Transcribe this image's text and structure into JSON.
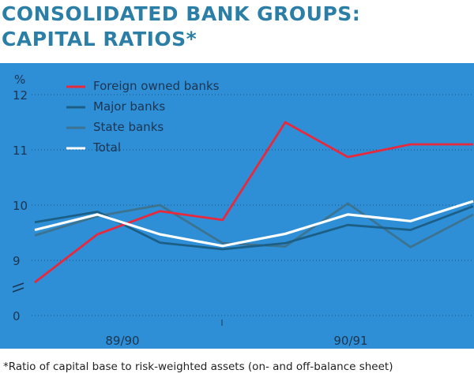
{
  "title_line1": "CONSOLIDATED BANK GROUPS:",
  "title_line2": "CAPITAL RATIOS*",
  "footnote": "*Ratio of capital base to risk-weighted assets (on- and off-balance sheet)",
  "chart_data": {
    "type": "line",
    "ylabel": "%",
    "y_ticks": [
      "12",
      "11",
      "10",
      "9",
      "0"
    ],
    "y_axis_break": "between 0 and 9",
    "ylim": [
      8.5,
      12
    ],
    "x_group_labels": [
      "89/90",
      "90/91"
    ],
    "x_points": 8,
    "grid": "horizontal dotted",
    "legend": "top-left",
    "series": [
      {
        "name": "Foreign owned banks",
        "color": "#e8283c",
        "values": [
          8.6,
          9.47,
          9.89,
          9.73,
          11.5,
          10.87,
          11.1,
          11.1
        ]
      },
      {
        "name": "Major banks",
        "color": "#1c5f86",
        "values": [
          9.69,
          9.88,
          9.32,
          9.2,
          9.31,
          9.64,
          9.55,
          9.98
        ]
      },
      {
        "name": "State banks",
        "color": "#3b7390",
        "values": [
          9.45,
          9.8,
          10.0,
          9.31,
          9.25,
          10.03,
          9.24,
          9.83
        ]
      },
      {
        "name": "Total",
        "color": "#ffffff",
        "values": [
          9.55,
          9.83,
          9.47,
          9.26,
          9.48,
          9.83,
          9.71,
          10.07
        ]
      }
    ],
    "background": "#2f8fd6"
  }
}
